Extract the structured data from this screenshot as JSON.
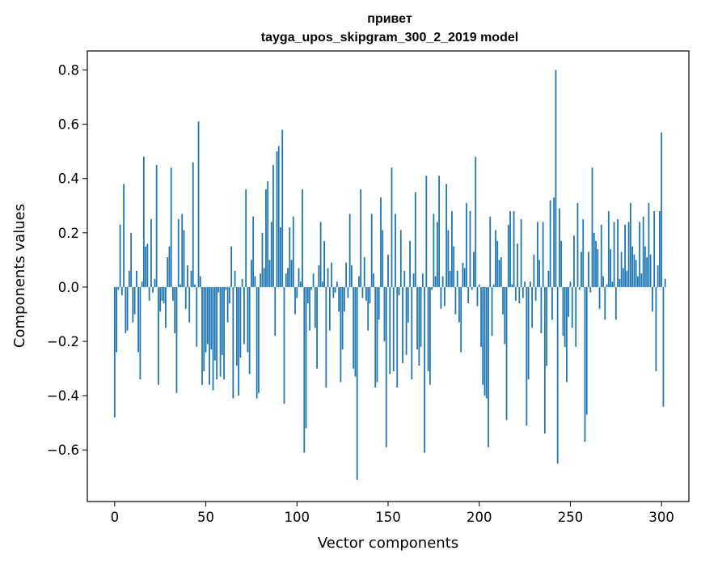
{
  "chart_data": {
    "type": "bar",
    "title_line1": "привет",
    "title_line2": "tayga_upos_skipgram_300_2_2019 model",
    "xlabel": "Vector components",
    "ylabel": "Components values",
    "xlim": [
      -15,
      315
    ],
    "ylim": [
      -0.79,
      0.87
    ],
    "xticks": [
      0,
      50,
      100,
      150,
      200,
      250,
      300
    ],
    "xtick_labels": [
      "0",
      "50",
      "100",
      "150",
      "200",
      "250",
      "300"
    ],
    "yticks": [
      -0.6,
      -0.4,
      -0.2,
      0.0,
      0.2,
      0.4,
      0.6,
      0.8
    ],
    "ytick_labels": [
      "−0.6",
      "−0.4",
      "−0.2",
      "0.0",
      "0.2",
      "0.4",
      "0.6",
      "0.8"
    ],
    "bar_color": "#1f77b4",
    "values": [
      -0.48,
      -0.24,
      -0.01,
      0.23,
      -0.03,
      0.38,
      -0.17,
      -0.16,
      0.06,
      0.2,
      -0.13,
      -0.1,
      0.06,
      -0.24,
      -0.34,
      0.02,
      0.48,
      0.15,
      0.16,
      -0.05,
      0.25,
      -0.02,
      0.03,
      0.45,
      -0.36,
      -0.09,
      -0.05,
      -0.06,
      -0.15,
      0.11,
      0.15,
      0.44,
      -0.05,
      -0.17,
      -0.39,
      0.25,
      0.01,
      0.27,
      0.21,
      -0.08,
      0.08,
      -0.13,
      0.06,
      0.46,
      0.01,
      -0.22,
      0.61,
      0.04,
      -0.36,
      -0.31,
      -0.24,
      -0.21,
      -0.36,
      -0.23,
      -0.38,
      -0.27,
      -0.34,
      -0.02,
      -0.33,
      -0.25,
      -0.34,
      -0.01,
      -0.13,
      -0.06,
      0.15,
      -0.41,
      0.06,
      -0.29,
      -0.4,
      -0.26,
      0.03,
      -0.21,
      0.36,
      -0.24,
      -0.32,
      0.1,
      0.26,
      0.04,
      -0.41,
      -0.39,
      0.05,
      0.2,
      0.07,
      0.36,
      0.39,
      0.1,
      0.24,
      0.45,
      -0.18,
      0.5,
      0.52,
      0.22,
      0.58,
      -0.43,
      0.05,
      0.07,
      0.22,
      0.1,
      0.26,
      -0.1,
      -0.04,
      0.07,
      0.02,
      0.36,
      -0.61,
      -0.52,
      -0.06,
      -0.16,
      -0.01,
      0.05,
      -0.15,
      -0.3,
      0.08,
      0.24,
      0.02,
      0.17,
      -0.37,
      0.07,
      -0.16,
      0.09,
      -0.04,
      -0.02,
      0.02,
      -0.09,
      -0.35,
      -0.23,
      -0.09,
      0.09,
      -0.04,
      0.27,
      0.08,
      -0.3,
      -0.33,
      -0.71,
      0.04,
      0.36,
      -0.04,
      0.11,
      -0.05,
      -0.16,
      -0.06,
      0.27,
      0.05,
      -0.37,
      -0.35,
      -0.12,
      0.33,
      0.21,
      -0.2,
      -0.59,
      0.12,
      -0.32,
      0.44,
      -0.31,
      0.27,
      -0.37,
      -0.03,
      0.21,
      -0.28,
      0.06,
      -0.25,
      -0.13,
      0.17,
      -0.34,
      0.05,
      0.35,
      -0.23,
      -0.29,
      -0.22,
      0.05,
      -0.61,
      0.41,
      -0.31,
      -0.36,
      -0.01,
      0.27,
      0.04,
      0.24,
      0.41,
      -0.08,
      0.04,
      -0.07,
      0.38,
      0.21,
      0.06,
      0.28,
      0.15,
      -0.1,
      0.06,
      -0.13,
      -0.24,
      0.09,
      0.07,
      0.31,
      -0.06,
      0.28,
      -0.01,
      0.13,
      0.48,
      -0.07,
      0.01,
      -0.22,
      -0.36,
      -0.4,
      -0.41,
      -0.59,
      0.26,
      -0.18,
      0.01,
      0.21,
      0.17,
      0.1,
      0.11,
      -0.1,
      -0.21,
      -0.49,
      0.23,
      0.28,
      0.01,
      0.28,
      -0.05,
      0.16,
      -0.06,
      0.25,
      -0.04,
      0.02,
      -0.51,
      -0.34,
      0.02,
      -0.15,
      0.12,
      -0.05,
      0.24,
      0.1,
      -0.17,
      0.24,
      -0.54,
      -0.29,
      0.06,
      0.32,
      -0.12,
      0.33,
      0.8,
      -0.65,
      0.29,
      0.17,
      -0.18,
      -0.22,
      -0.35,
      -0.11,
      0.02,
      -0.15,
      0.19,
      -0.22,
      0.31,
      -0.01,
      0.13,
      0.25,
      -0.57,
      -0.47,
      0.13,
      -0.02,
      0.44,
      0.2,
      0.17,
      0.14,
      -0.08,
      0.23,
      0.04,
      -0.12,
      0.01,
      0.28,
      0.14,
      0.02,
      0.24,
      -0.12,
      0.25,
      0.03,
      0.13,
      0.07,
      0.23,
      0.06,
      0.24,
      0.31,
      0.15,
      0.12,
      0.1,
      0.04,
      0.24,
      0.05,
      0.26,
      0.15,
      0.11,
      0.31,
      0.12,
      -0.09,
      0.28,
      -0.31,
      0.08,
      0.28,
      0.57,
      -0.44,
      0.03
    ]
  }
}
